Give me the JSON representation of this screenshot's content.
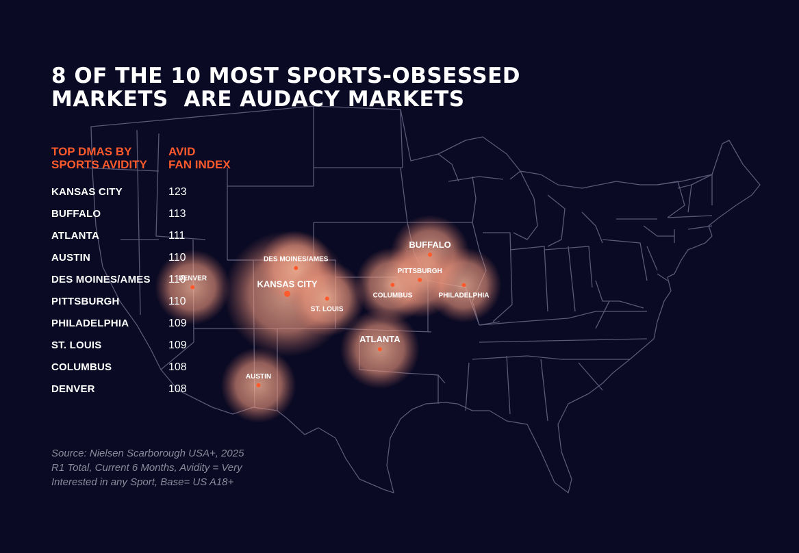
{
  "title": {
    "line1": "8 OF THE 10 MOST SPORTS-OBSESSED",
    "line2": "MARKETS  ARE AUDACY MARKETS"
  },
  "table": {
    "col1_header": [
      "TOP DMAS BY",
      "SPORTS AVIDITY"
    ],
    "col2_header": [
      "AVID",
      "FAN INDEX"
    ],
    "rows": [
      {
        "market": "KANSAS CITY",
        "index": "123"
      },
      {
        "market": "BUFFALO",
        "index": "113"
      },
      {
        "market": "ATLANTA",
        "index": "111"
      },
      {
        "market": "AUSTIN",
        "index": "110"
      },
      {
        "market": "DES MOINES/AMES",
        "index": "110"
      },
      {
        "market": "PITTSBURGH",
        "index": "110"
      },
      {
        "market": "PHILADELPHIA",
        "index": "109"
      },
      {
        "market": "ST. LOUIS",
        "index": "109"
      },
      {
        "market": "COLUMBUS",
        "index": "108"
      },
      {
        "market": "DENVER",
        "index": "108"
      }
    ]
  },
  "source": {
    "line1": "Source: Nielsen Scarborough USA+, 2025",
    "line2": "R1 Total, Current 6 Months, Avidity = Very",
    "line3": "Interested in any Sport, Base= US A18+"
  },
  "map": {
    "markers": [
      {
        "label": "KANSAS CITY",
        "lon": -94.58,
        "lat": 39.1,
        "label_pos": "above",
        "size": "large",
        "index": 123
      },
      {
        "label": "BUFFALO",
        "lon": -78.88,
        "lat": 42.89,
        "label_pos": "above",
        "size": "medium",
        "index": 113
      },
      {
        "label": "ATLANTA",
        "lon": -84.39,
        "lat": 33.75,
        "label_pos": "above",
        "size": "medium",
        "index": 111
      },
      {
        "label": "AUSTIN",
        "lon": -97.74,
        "lat": 30.27,
        "label_pos": "above",
        "size": "small",
        "index": 110
      },
      {
        "label": "DES MOINES/AMES",
        "lon": -93.62,
        "lat": 41.59,
        "label_pos": "above",
        "size": "small",
        "index": 110
      },
      {
        "label": "PITTSBURGH",
        "lon": -80.0,
        "lat": 40.44,
        "label_pos": "above",
        "size": "small",
        "index": 110
      },
      {
        "label": "PHILADELPHIA",
        "lon": -75.16,
        "lat": 39.95,
        "label_pos": "below",
        "size": "small",
        "index": 109
      },
      {
        "label": "ST. LOUIS",
        "lon": -90.2,
        "lat": 38.63,
        "label_pos": "below",
        "size": "small",
        "index": 109
      },
      {
        "label": "COLUMBUS",
        "lon": -82.99,
        "lat": 39.96,
        "label_pos": "below",
        "size": "small",
        "index": 108
      },
      {
        "label": "DENVER",
        "lon": -104.99,
        "lat": 39.74,
        "label_pos": "above",
        "size": "small",
        "index": 108
      }
    ]
  },
  "colors": {
    "background": "#0a0a24",
    "accent": "#ff5a2c",
    "glow": "#f0a080",
    "border_lines": "#5a5a78",
    "source_text": "#8a8a9c"
  }
}
